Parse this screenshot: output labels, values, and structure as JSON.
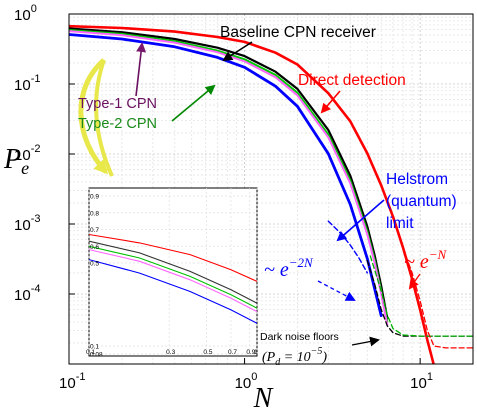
{
  "chart_data": {
    "type": "line",
    "title": "",
    "xlabel": "N",
    "ylabel": "P_e",
    "x_scale": "log",
    "y_scale": "log",
    "xlim": [
      0.1,
      20
    ],
    "ylim": [
      1e-05,
      1
    ],
    "grid": true,
    "x_ticks": [
      {
        "value": 0.1,
        "base": "10",
        "exp": "-1"
      },
      {
        "value": 1,
        "base": "10",
        "exp": "0"
      },
      {
        "value": 10,
        "base": "10",
        "exp": "1"
      }
    ],
    "y_ticks": [
      {
        "value": 1,
        "base": "10",
        "exp": "0"
      },
      {
        "value": 0.1,
        "base": "10",
        "exp": "-1"
      },
      {
        "value": 0.01,
        "base": "10",
        "exp": "-2"
      },
      {
        "value": 0.001,
        "base": "10",
        "exp": "-3"
      },
      {
        "value": 0.0001,
        "base": "10",
        "exp": "-4"
      }
    ],
    "series": [
      {
        "key": "direct",
        "color": "#ff0000",
        "width": 2.6,
        "x": [
          0.1,
          0.2,
          0.4,
          0.7,
          1.0,
          1.5,
          2.0,
          3.0,
          4.0,
          5.0,
          6.0,
          7.0,
          8.0,
          9.0,
          10.0,
          11.0,
          12.0
        ],
        "y": [
          0.67,
          0.63,
          0.56,
          0.47,
          0.4,
          0.28,
          0.19,
          0.074,
          0.0293,
          0.0102,
          0.00357,
          0.00127,
          0.000455,
          0.000164,
          5.97e-05,
          2.18e-05,
          9.5e-06
        ]
      },
      {
        "key": "baseline",
        "color": "#000000",
        "width": 2.2,
        "x": [
          0.1,
          0.2,
          0.4,
          0.7,
          1.0,
          1.5,
          2.0,
          3.0,
          4.0,
          5.0,
          5.5,
          6.0,
          6.5
        ],
        "y": [
          0.62,
          0.55,
          0.44,
          0.33,
          0.25,
          0.15,
          0.085,
          0.022,
          0.0049,
          0.00092,
          0.00036,
          0.00013,
          4.5e-05
        ]
      },
      {
        "key": "type2",
        "color": "#00c800",
        "width": 2.0,
        "x": [
          0.1,
          0.2,
          0.4,
          0.7,
          1.0,
          1.5,
          2.0,
          3.0,
          4.0,
          5.0,
          5.5,
          6.0,
          6.5
        ],
        "y": [
          0.59,
          0.52,
          0.41,
          0.3,
          0.225,
          0.135,
          0.075,
          0.019,
          0.0042,
          0.00079,
          0.00031,
          0.00011,
          4e-05
        ]
      },
      {
        "key": "type1",
        "color": "#ff66ff",
        "width": 2.0,
        "x": [
          0.1,
          0.2,
          0.4,
          0.7,
          1.0,
          1.5,
          2.0,
          3.0,
          4.0,
          5.0,
          5.5,
          6.0,
          6.5
        ],
        "y": [
          0.57,
          0.5,
          0.39,
          0.285,
          0.21,
          0.125,
          0.069,
          0.0173,
          0.0038,
          0.00071,
          0.00028,
          0.0001,
          3.6e-05
        ]
      },
      {
        "key": "helstrom",
        "color": "#0000ff",
        "width": 2.8,
        "x": [
          0.1,
          0.2,
          0.4,
          0.7,
          1.0,
          1.5,
          2.0,
          3.0,
          4.0,
          5.0,
          5.5,
          6.0
        ],
        "y": [
          0.51,
          0.44,
          0.34,
          0.24,
          0.173,
          0.093,
          0.048,
          0.0101,
          0.0019,
          0.00032,
          0.00012,
          4.9e-05
        ]
      },
      {
        "key": "noise_black",
        "color": "#000000",
        "width": 1.3,
        "dash": "5,3",
        "x": [
          5.0,
          5.5,
          6.0,
          6.5,
          7.0,
          8.0,
          10.0,
          14.0,
          20.0
        ],
        "y": [
          0.0003,
          0.00014,
          6e-05,
          3.5e-05,
          2.8e-05,
          2.5e-05,
          2.5e-05,
          2.5e-05,
          2.5e-05
        ]
      },
      {
        "key": "noise_green",
        "color": "#00b000",
        "width": 1.3,
        "dash": "5,3",
        "x": [
          5.2,
          6.0,
          6.5,
          7.0,
          8.0,
          10.0,
          14.0,
          20.0
        ],
        "y": [
          0.00035,
          0.00011,
          5e-05,
          3.2e-05,
          2.6e-05,
          2.5e-05,
          2.5e-05,
          2.5e-05
        ]
      },
      {
        "key": "noise_red",
        "color": "#ff0000",
        "width": 1.3,
        "dash": "5,3",
        "x": [
          8.0,
          9.0,
          10.0,
          11.0,
          12.0,
          14.0,
          20.0
        ],
        "y": [
          0.00045,
          0.0002,
          8e-05,
          3e-05,
          1.8e-05,
          1.7e-05,
          1.7e-05
        ]
      },
      {
        "key": "fit_blue",
        "color": "#0000ff",
        "width": 1.4,
        "dash": "5,3",
        "x": [
          3.0,
          3.5,
          4.0,
          4.5,
          5.0
        ],
        "y": [
          0.0011,
          0.00075,
          0.0005,
          0.00032,
          0.0002
        ]
      }
    ],
    "annotations": {
      "baseline": "Baseline CPN receiver",
      "direct": "Direct detection",
      "type1": "Type-1 CPN",
      "type2": "Type-2 CPN",
      "helstrom_1": "Helstrom",
      "helstrom_2": "(quantum)",
      "helstrom_3": "limit",
      "exp2_prefix": "~ e",
      "exp2_sup": "−2N",
      "exp1_prefix": "~ e",
      "exp1_sup": "−N",
      "dark_1": "Dark noise floors",
      "dark_2": "(P",
      "dark_2_sub": "d",
      "dark_2_rest": " = 10",
      "dark_2_sup": "−5",
      "dark_2_close": ")"
    },
    "inset": {
      "type": "line",
      "x_scale": "log",
      "xlim": [
        0.1,
        1
      ],
      "ylim": [
        0.08,
        1
      ],
      "x_tick_labels": [
        {
          "value": 0.1,
          "label": "0.1"
        },
        {
          "value": 0.3,
          "label": "0.3"
        },
        {
          "value": 0.5,
          "label": "0.5"
        },
        {
          "value": 0.7,
          "label": "0.7"
        },
        {
          "value": 0.9,
          "label": "0.9"
        },
        {
          "value": 1.0,
          "label": "1"
        }
      ],
      "y_tick_labels": [
        {
          "value": 0.9,
          "label": "0.9"
        },
        {
          "value": 0.8,
          "label": "0.8"
        },
        {
          "value": 0.7,
          "label": "0.7"
        },
        {
          "value": 0.6,
          "label": "0.6"
        },
        {
          "value": 0.5,
          "label": "0.5"
        },
        {
          "value": 0.1,
          "label": "0.1"
        },
        {
          "value": 0.08,
          "label": "0.08"
        }
      ],
      "series": [
        {
          "key": "direct",
          "color": "#ff0000",
          "x": [
            0.1,
            0.2,
            0.4,
            0.7,
            1.0
          ],
          "y": [
            0.67,
            0.62,
            0.55,
            0.46,
            0.39
          ]
        },
        {
          "key": "baseline",
          "color": "#333333",
          "x": [
            0.1,
            0.2,
            0.4,
            0.7,
            1.0
          ],
          "y": [
            0.63,
            0.56,
            0.45,
            0.34,
            0.26
          ]
        },
        {
          "key": "type2",
          "color": "#00c000",
          "x": [
            0.1,
            0.2,
            0.4,
            0.7,
            1.0
          ],
          "y": [
            0.6,
            0.53,
            0.42,
            0.31,
            0.23
          ]
        },
        {
          "key": "type1",
          "color": "#ff66ff",
          "x": [
            0.1,
            0.2,
            0.4,
            0.7,
            1.0
          ],
          "y": [
            0.58,
            0.51,
            0.4,
            0.29,
            0.21
          ]
        },
        {
          "key": "helstrom",
          "color": "#0000ff",
          "x": [
            0.1,
            0.2,
            0.4,
            0.7,
            1.0
          ],
          "y": [
            0.52,
            0.44,
            0.33,
            0.22,
            0.14
          ]
        }
      ]
    }
  }
}
